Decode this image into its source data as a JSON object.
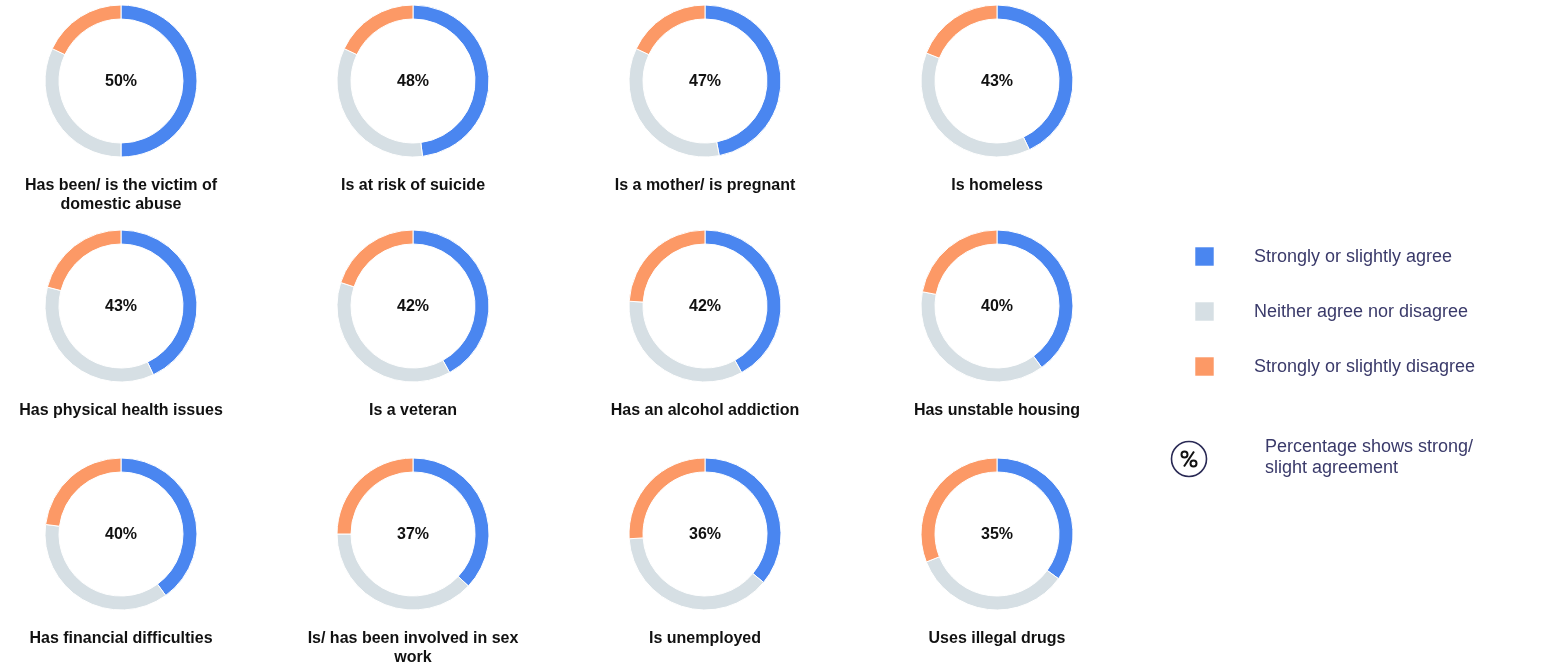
{
  "chart_data": [
    {
      "type": "donut",
      "title": "Has been/ is the victim of domestic abuse",
      "categories": [
        null,
        null,
        null
      ],
      "values": [
        50,
        32,
        18
      ],
      "colors": [
        "#4a86f0",
        "#d6dfe4",
        "#fc9966"
      ],
      "value_labels": [
        "50%",
        null,
        null
      ]
    },
    {
      "type": "donut",
      "title": "Is at risk of suicide",
      "categories": [
        null,
        null,
        null
      ],
      "values": [
        48,
        34,
        18
      ],
      "colors": [
        "#4a86f0",
        "#d6dfe4",
        "#fc9966"
      ],
      "value_labels": [
        "48%",
        null,
        null
      ]
    },
    {
      "type": "donut",
      "title": "Is a mother/ is pregnant",
      "categories": [
        null,
        null,
        null
      ],
      "values": [
        47,
        35,
        18
      ],
      "colors": [
        "#4a86f0",
        "#d6dfe4",
        "#fc9966"
      ],
      "value_labels": [
        "47%",
        null,
        null
      ]
    },
    {
      "type": "donut",
      "title": "Is homeless",
      "categories": [
        null,
        null,
        null
      ],
      "values": [
        43,
        38,
        19
      ],
      "colors": [
        "#4a86f0",
        "#d6dfe4",
        "#fc9966"
      ],
      "value_labels": [
        "43%",
        null,
        null
      ]
    },
    {
      "type": "donut",
      "title": "Has physical health issues",
      "categories": [
        null,
        null,
        null
      ],
      "values": [
        43,
        36,
        21
      ],
      "colors": [
        "#4a86f0",
        "#d6dfe4",
        "#fc9966"
      ],
      "value_labels": [
        "43%",
        null,
        null
      ]
    },
    {
      "type": "donut",
      "title": "Is a veteran",
      "categories": [
        null,
        null,
        null
      ],
      "values": [
        42,
        38,
        20
      ],
      "colors": [
        "#4a86f0",
        "#d6dfe4",
        "#fc9966"
      ],
      "value_labels": [
        "42%",
        null,
        null
      ]
    },
    {
      "type": "donut",
      "title": "Has an alcohol addiction",
      "categories": [
        null,
        null,
        null
      ],
      "values": [
        42,
        34,
        24
      ],
      "colors": [
        "#4a86f0",
        "#d6dfe4",
        "#fc9966"
      ],
      "value_labels": [
        "42%",
        null,
        null
      ]
    },
    {
      "type": "donut",
      "title": "Has unstable housing",
      "categories": [
        "Strongly or slightly agree",
        "Neither agree nor disagree",
        "Strongly or slightly disagree"
      ],
      "values": [
        40,
        38,
        22
      ],
      "colors": [
        "#4a86f0",
        "#d6dfe4",
        "#fc9966"
      ],
      "value_labels": [
        "40%",
        null,
        null
      ],
      "legend": "right",
      "annotations": [
        "Percentage shows strong/ slight agreement"
      ]
    },
    {
      "type": "donut",
      "title": "Has financial difficulties",
      "categories": [
        null,
        null,
        null
      ],
      "values": [
        40,
        37,
        23
      ],
      "colors": [
        "#4a86f0",
        "#d6dfe4",
        "#fc9966"
      ],
      "value_labels": [
        "40%",
        null,
        null
      ]
    },
    {
      "type": "donut",
      "title": "Is/ has been involved in sex work",
      "categories": [
        null,
        null,
        null
      ],
      "values": [
        37,
        38,
        25
      ],
      "colors": [
        "#4a86f0",
        "#d6dfe4",
        "#fc9966"
      ],
      "value_labels": [
        "37%",
        null,
        null
      ]
    },
    {
      "type": "donut",
      "title": "Is unemployed",
      "categories": [
        null,
        null,
        null
      ],
      "values": [
        36,
        38,
        26
      ],
      "colors": [
        "#4a86f0",
        "#d6dfe4",
        "#fc9966"
      ],
      "value_labels": [
        "36%",
        null,
        null
      ]
    },
    {
      "type": "donut",
      "title": "Uses illegal drugs",
      "categories": [
        null,
        null,
        null
      ],
      "values": [
        35,
        34,
        31
      ],
      "colors": [
        "#4a86f0",
        "#d6dfe4",
        "#fc9966"
      ],
      "value_labels": [
        "35%",
        null,
        null
      ]
    }
  ]
}
